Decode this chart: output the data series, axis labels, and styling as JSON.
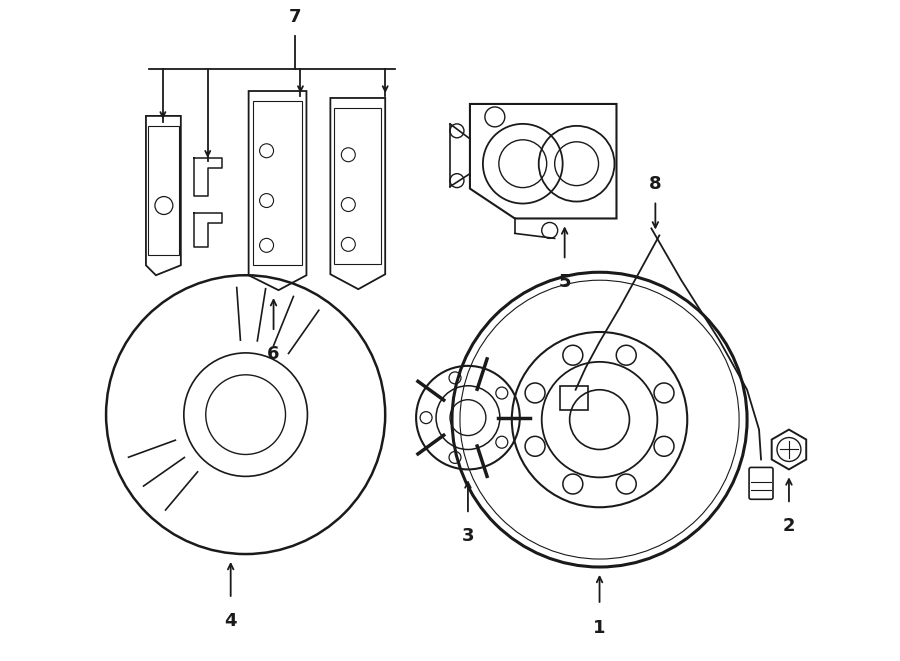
{
  "bg_color": "#ffffff",
  "line_color": "#1a1a1a",
  "fig_width": 9.0,
  "fig_height": 6.61,
  "dpi": 100,
  "label_fontsize": 13
}
